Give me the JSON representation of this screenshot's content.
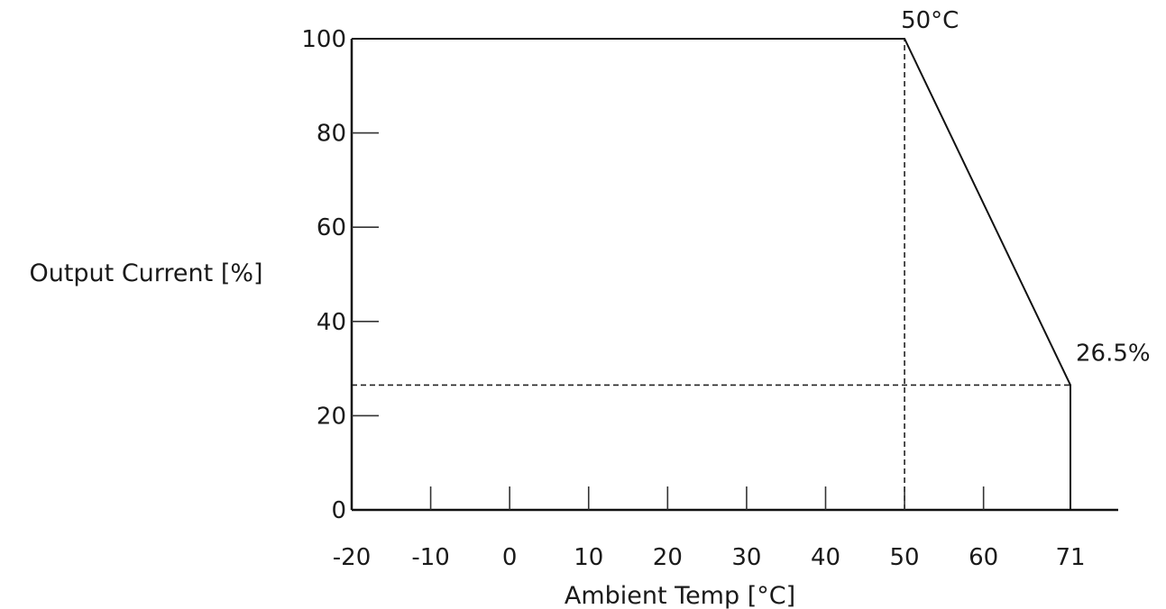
{
  "chart_data": {
    "type": "line",
    "title": "",
    "xlabel": "Ambient Temp [°C]",
    "ylabel": "Output Current [%]",
    "x_ticks": [
      -20,
      -10,
      0,
      10,
      20,
      30,
      40,
      50,
      60,
      71
    ],
    "x_tick_labels": [
      "-20",
      "-10",
      "0",
      "10",
      "20",
      "30",
      "40",
      "50",
      "60",
      "71"
    ],
    "y_ticks": [
      0,
      20,
      40,
      60,
      80,
      100
    ],
    "y_tick_labels": [
      "0",
      "20",
      "40",
      "60",
      "80",
      "100"
    ],
    "xlim": [
      -20,
      71
    ],
    "ylim": [
      0,
      100
    ],
    "grid": false,
    "legend": "none",
    "series": [
      {
        "x": [
          -20,
          50,
          71,
          71
        ],
        "y": [
          100,
          100,
          26.5,
          0
        ]
      }
    ],
    "reference_lines": [
      {
        "orientation": "vertical",
        "x": 50,
        "y_from": 0,
        "y_to": 100,
        "style": "dashed"
      },
      {
        "orientation": "horizontal",
        "y": 26.5,
        "x_from": -20,
        "x_to": 71,
        "style": "dashed"
      }
    ],
    "annotations": [
      {
        "text": "50°C",
        "x": 50,
        "y": 100
      },
      {
        "text": "26.5%",
        "x": 71,
        "y": 26.5
      }
    ],
    "line_color": "#111111"
  }
}
